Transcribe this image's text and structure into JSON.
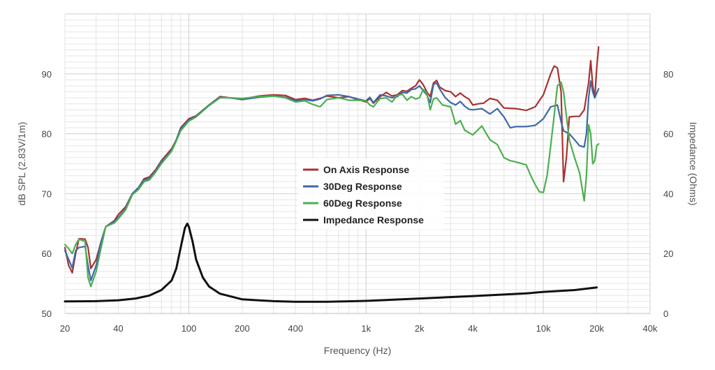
{
  "chart_data": {
    "type": "line",
    "title": "",
    "xlabel": "Frequency (Hz)",
    "ylabel": "dB SPL (2.83V/1m)",
    "y2label": "Impedance (Ohms)",
    "xscale": "log",
    "xlim": [
      20,
      40000
    ],
    "ylim": [
      50,
      100
    ],
    "y2lim": [
      0,
      100
    ],
    "x_ticks": [
      {
        "value": 20,
        "label": "20"
      },
      {
        "value": 40,
        "label": "40"
      },
      {
        "value": 100,
        "label": "100"
      },
      {
        "value": 200,
        "label": "200"
      },
      {
        "value": 400,
        "label": "400"
      },
      {
        "value": 1000,
        "label": "1k"
      },
      {
        "value": 2000,
        "label": "2k"
      },
      {
        "value": 4000,
        "label": "4k"
      },
      {
        "value": 10000,
        "label": "10k"
      },
      {
        "value": 20000,
        "label": "20k"
      },
      {
        "value": 40000,
        "label": "40k"
      }
    ],
    "y_ticks": [
      {
        "value": 50,
        "label": "50"
      },
      {
        "value": 60,
        "label": "60"
      },
      {
        "value": 70,
        "label": "70"
      },
      {
        "value": 80,
        "label": "80"
      },
      {
        "value": 90,
        "label": "90"
      }
    ],
    "y2_ticks": [
      {
        "value": 0,
        "label": "0"
      },
      {
        "value": 20,
        "label": "20"
      },
      {
        "value": 40,
        "label": "40"
      },
      {
        "value": 60,
        "label": "60"
      },
      {
        "value": 80,
        "label": "80"
      }
    ],
    "grid": true,
    "legend_position": "center",
    "series": [
      {
        "name": "On Axis Response",
        "axis": "left",
        "color": "#a83232",
        "points": [
          [
            20,
            61
          ],
          [
            21,
            58
          ],
          [
            22,
            56.8
          ],
          [
            23,
            60
          ],
          [
            24,
            62.5
          ],
          [
            26,
            62.4
          ],
          [
            27,
            61
          ],
          [
            28,
            57.5
          ],
          [
            30,
            59
          ],
          [
            32,
            62
          ],
          [
            34,
            64.5
          ],
          [
            38,
            65.5
          ],
          [
            40,
            66.5
          ],
          [
            44,
            67.8
          ],
          [
            48,
            70
          ],
          [
            52,
            71
          ],
          [
            56,
            72.5
          ],
          [
            60,
            72.8
          ],
          [
            65,
            74
          ],
          [
            70,
            75.5
          ],
          [
            80,
            77.5
          ],
          [
            85,
            79
          ],
          [
            90,
            81
          ],
          [
            100,
            82.5
          ],
          [
            110,
            83
          ],
          [
            130,
            84.8
          ],
          [
            150,
            86.2
          ],
          [
            170,
            86
          ],
          [
            200,
            85.8
          ],
          [
            250,
            86.3
          ],
          [
            300,
            86.5
          ],
          [
            350,
            86.4
          ],
          [
            400,
            85.7
          ],
          [
            450,
            85.9
          ],
          [
            500,
            85.6
          ],
          [
            550,
            85.9
          ],
          [
            600,
            86.3
          ],
          [
            700,
            86
          ],
          [
            800,
            86.2
          ],
          [
            900,
            85.7
          ],
          [
            1000,
            85.3
          ],
          [
            1050,
            85.9
          ],
          [
            1100,
            85.1
          ],
          [
            1200,
            86.2
          ],
          [
            1300,
            86.9
          ],
          [
            1400,
            86.3
          ],
          [
            1500,
            86.5
          ],
          [
            1600,
            87.2
          ],
          [
            1700,
            87.1
          ],
          [
            1800,
            87.6
          ],
          [
            1900,
            88
          ],
          [
            2000,
            89
          ],
          [
            2100,
            88.2
          ],
          [
            2200,
            87
          ],
          [
            2300,
            86.2
          ],
          [
            2400,
            88.5
          ],
          [
            2500,
            88.9
          ],
          [
            2600,
            87.8
          ],
          [
            2800,
            87.2
          ],
          [
            3000,
            87
          ],
          [
            3200,
            86.2
          ],
          [
            3400,
            86.8
          ],
          [
            3600,
            86.2
          ],
          [
            3800,
            85.8
          ],
          [
            4000,
            84.8
          ],
          [
            4300,
            85
          ],
          [
            4600,
            85.1
          ],
          [
            5000,
            85.9
          ],
          [
            5500,
            85.6
          ],
          [
            6000,
            84.3
          ],
          [
            7000,
            84.2
          ],
          [
            8000,
            83.9
          ],
          [
            9000,
            84.5
          ],
          [
            10000,
            86.5
          ],
          [
            11000,
            90
          ],
          [
            11500,
            91.3
          ],
          [
            12000,
            91
          ],
          [
            12600,
            87
          ],
          [
            13000,
            72
          ],
          [
            13500,
            76
          ],
          [
            14000,
            82.8
          ],
          [
            15000,
            82.9
          ],
          [
            16000,
            82.9
          ],
          [
            17000,
            84
          ],
          [
            18000,
            88.5
          ],
          [
            18500,
            92.2
          ],
          [
            19000,
            88
          ],
          [
            19500,
            86
          ],
          [
            20000,
            91
          ],
          [
            20500,
            94.5
          ]
        ]
      },
      {
        "name": "30Deg Response",
        "axis": "left",
        "color": "#3d69a8",
        "points": [
          [
            20,
            60.5
          ],
          [
            21,
            59
          ],
          [
            22,
            57.6
          ],
          [
            23,
            60.5
          ],
          [
            24,
            61
          ],
          [
            26,
            61.2
          ],
          [
            27,
            58
          ],
          [
            28,
            55.5
          ],
          [
            30,
            58
          ],
          [
            32,
            62
          ],
          [
            34,
            64.5
          ],
          [
            38,
            65.3
          ],
          [
            40,
            66
          ],
          [
            44,
            67.5
          ],
          [
            48,
            70
          ],
          [
            52,
            71
          ],
          [
            56,
            72.3
          ],
          [
            60,
            72.5
          ],
          [
            65,
            73.8
          ],
          [
            70,
            75.3
          ],
          [
            80,
            77.2
          ],
          [
            85,
            79
          ],
          [
            90,
            80.8
          ],
          [
            100,
            82.3
          ],
          [
            110,
            82.9
          ],
          [
            130,
            84.8
          ],
          [
            150,
            86.1
          ],
          [
            170,
            86
          ],
          [
            200,
            85.7
          ],
          [
            250,
            86.1
          ],
          [
            300,
            86.3
          ],
          [
            350,
            86.1
          ],
          [
            400,
            85.5
          ],
          [
            450,
            85.7
          ],
          [
            500,
            85.5
          ],
          [
            550,
            85.8
          ],
          [
            600,
            86.4
          ],
          [
            700,
            86.5
          ],
          [
            800,
            86.2
          ],
          [
            900,
            85.8
          ],
          [
            1000,
            85.5
          ],
          [
            1050,
            86.1
          ],
          [
            1100,
            85.2
          ],
          [
            1200,
            86.5
          ],
          [
            1300,
            86.3
          ],
          [
            1400,
            86
          ],
          [
            1500,
            86.2
          ],
          [
            1600,
            86.9
          ],
          [
            1700,
            86.8
          ],
          [
            1800,
            87.4
          ],
          [
            1900,
            87.5
          ],
          [
            2000,
            88
          ],
          [
            2100,
            87.2
          ],
          [
            2200,
            86.5
          ],
          [
            2300,
            85.2
          ],
          [
            2400,
            88.2
          ],
          [
            2500,
            88.5
          ],
          [
            2600,
            87.5
          ],
          [
            2800,
            86
          ],
          [
            3000,
            85.2
          ],
          [
            3200,
            84.8
          ],
          [
            3400,
            85.4
          ],
          [
            3600,
            84.6
          ],
          [
            3800,
            84.1
          ],
          [
            4000,
            84
          ],
          [
            4500,
            84.2
          ],
          [
            5000,
            83.3
          ],
          [
            5500,
            84.2
          ],
          [
            6000,
            82.8
          ],
          [
            6500,
            81
          ],
          [
            7000,
            81.2
          ],
          [
            8000,
            81.2
          ],
          [
            9000,
            81.4
          ],
          [
            10000,
            82.5
          ],
          [
            11000,
            84.5
          ],
          [
            12000,
            84.8
          ],
          [
            12600,
            82
          ],
          [
            13000,
            80.5
          ],
          [
            14000,
            80
          ],
          [
            15000,
            79
          ],
          [
            16000,
            78
          ],
          [
            17000,
            77.8
          ],
          [
            17500,
            80
          ],
          [
            18000,
            86
          ],
          [
            18500,
            88.8
          ],
          [
            19000,
            87
          ],
          [
            19500,
            86
          ],
          [
            20000,
            86.8
          ],
          [
            20500,
            87.5
          ]
        ]
      },
      {
        "name": "60Deg Response",
        "axis": "left",
        "color": "#4caf50",
        "points": [
          [
            20,
            61.5
          ],
          [
            21,
            60.8
          ],
          [
            22,
            60
          ],
          [
            23,
            61.5
          ],
          [
            24,
            62.4
          ],
          [
            26,
            62
          ],
          [
            27,
            56
          ],
          [
            28,
            54.5
          ],
          [
            30,
            57
          ],
          [
            32,
            61
          ],
          [
            34,
            64.5
          ],
          [
            38,
            65.1
          ],
          [
            40,
            65.8
          ],
          [
            44,
            67.3
          ],
          [
            48,
            69.8
          ],
          [
            52,
            70.7
          ],
          [
            56,
            72
          ],
          [
            60,
            72.3
          ],
          [
            65,
            73.6
          ],
          [
            70,
            75
          ],
          [
            80,
            77.1
          ],
          [
            85,
            78.8
          ],
          [
            90,
            80.5
          ],
          [
            100,
            82.1
          ],
          [
            110,
            82.8
          ],
          [
            130,
            84.7
          ],
          [
            150,
            86
          ],
          [
            170,
            86
          ],
          [
            200,
            85.9
          ],
          [
            250,
            86.2
          ],
          [
            300,
            86.3
          ],
          [
            350,
            86
          ],
          [
            400,
            85.3
          ],
          [
            450,
            85.5
          ],
          [
            500,
            84.9
          ],
          [
            550,
            84.5
          ],
          [
            600,
            85.7
          ],
          [
            700,
            86
          ],
          [
            800,
            85.6
          ],
          [
            900,
            85.6
          ],
          [
            1000,
            85.5
          ],
          [
            1050,
            84.8
          ],
          [
            1100,
            84.5
          ],
          [
            1200,
            85.9
          ],
          [
            1300,
            86
          ],
          [
            1400,
            85.3
          ],
          [
            1500,
            86.4
          ],
          [
            1600,
            86.6
          ],
          [
            1700,
            85.6
          ],
          [
            1800,
            86.2
          ],
          [
            1900,
            85.8
          ],
          [
            2000,
            86
          ],
          [
            2100,
            87.4
          ],
          [
            2200,
            86.8
          ],
          [
            2300,
            84
          ],
          [
            2400,
            85.8
          ],
          [
            2500,
            86
          ],
          [
            2700,
            84.8
          ],
          [
            3000,
            84.5
          ],
          [
            3200,
            81.6
          ],
          [
            3400,
            82.2
          ],
          [
            3600,
            80.6
          ],
          [
            4000,
            79.8
          ],
          [
            4500,
            81.3
          ],
          [
            5000,
            79
          ],
          [
            5500,
            78.2
          ],
          [
            6000,
            76
          ],
          [
            6500,
            75.5
          ],
          [
            7000,
            75.3
          ],
          [
            8000,
            74.8
          ],
          [
            8500,
            73
          ],
          [
            9000,
            71.5
          ],
          [
            9500,
            70.3
          ],
          [
            10000,
            70.2
          ],
          [
            10500,
            73
          ],
          [
            11000,
            78
          ],
          [
            11500,
            83
          ],
          [
            12000,
            88
          ],
          [
            12600,
            88.6
          ],
          [
            13000,
            87
          ],
          [
            14000,
            79
          ],
          [
            15000,
            76
          ],
          [
            16000,
            73.5
          ],
          [
            17000,
            68.8
          ],
          [
            17500,
            73
          ],
          [
            18000,
            81.5
          ],
          [
            18500,
            80
          ],
          [
            19000,
            75
          ],
          [
            19500,
            75.5
          ],
          [
            20000,
            78
          ],
          [
            20500,
            78.3
          ]
        ]
      },
      {
        "name": "Impedance Response",
        "axis": "right",
        "color": "#111111",
        "points": [
          [
            20,
            4
          ],
          [
            30,
            4.1
          ],
          [
            40,
            4.4
          ],
          [
            50,
            5
          ],
          [
            60,
            6
          ],
          [
            70,
            7.8
          ],
          [
            80,
            11
          ],
          [
            85,
            15
          ],
          [
            90,
            22
          ],
          [
            95,
            28.5
          ],
          [
            98,
            30
          ],
          [
            100,
            29
          ],
          [
            105,
            24
          ],
          [
            110,
            18
          ],
          [
            120,
            12
          ],
          [
            130,
            9
          ],
          [
            150,
            6.6
          ],
          [
            200,
            4.7
          ],
          [
            300,
            4.1
          ],
          [
            400,
            3.9
          ],
          [
            600,
            3.9
          ],
          [
            1000,
            4.2
          ],
          [
            2000,
            5
          ],
          [
            4000,
            5.8
          ],
          [
            8000,
            6.7
          ],
          [
            10000,
            7.2
          ],
          [
            15000,
            7.8
          ],
          [
            20000,
            8.7
          ]
        ]
      }
    ]
  }
}
